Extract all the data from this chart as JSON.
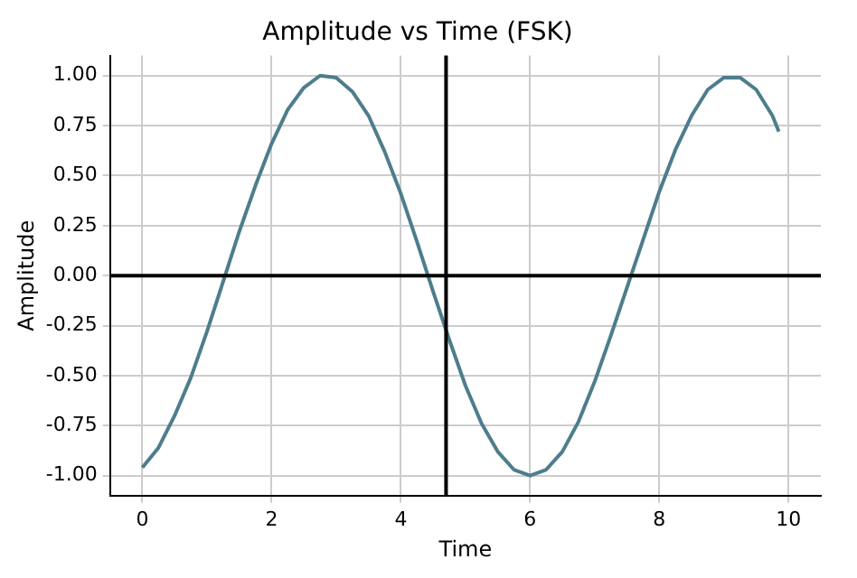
{
  "chart_data": {
    "type": "line",
    "title": "Amplitude vs Time (FSK)",
    "xlabel": "Time",
    "ylabel": "Amplitude",
    "series": [
      {
        "color": "#4e7d8c",
        "x": [
          0,
          0.25,
          0.5,
          0.75,
          1,
          1.25,
          1.5,
          1.75,
          2,
          2.25,
          2.5,
          2.75,
          3,
          3.25,
          3.5,
          3.75,
          4,
          4.25,
          4.5,
          4.75,
          5,
          5.25,
          5.5,
          5.75,
          6,
          6.25,
          6.5,
          6.75,
          7,
          7.25,
          7.5,
          7.75,
          8,
          8.25,
          8.5,
          8.75,
          9,
          9.25,
          9.5,
          9.75,
          9.85
        ],
        "values": [
          -0.96,
          -0.86,
          -0.7,
          -0.51,
          -0.28,
          -0.03,
          0.22,
          0.45,
          0.66,
          0.83,
          0.94,
          1.0,
          0.99,
          0.92,
          0.8,
          0.62,
          0.41,
          0.17,
          -0.08,
          -0.32,
          -0.55,
          -0.74,
          -0.88,
          -0.97,
          -1.0,
          -0.97,
          -0.88,
          -0.73,
          -0.53,
          -0.3,
          -0.06,
          0.18,
          0.42,
          0.63,
          0.8,
          0.93,
          0.99,
          0.99,
          0.93,
          0.8,
          0.72
        ]
      }
    ],
    "xlim": [
      -0.5,
      10.5
    ],
    "xticks": [
      0,
      2,
      4,
      6,
      8,
      10
    ],
    "ylim": [
      -1.1,
      1.1
    ],
    "yticks": [
      {
        "value": -1,
        "label": "-1.00"
      },
      {
        "value": -0.75,
        "label": "-0.75"
      },
      {
        "value": -0.5,
        "label": "-0.50"
      },
      {
        "value": -0.25,
        "label": "-0.25"
      },
      {
        "value": 0,
        "label": "0.00"
      },
      {
        "value": 0.25,
        "label": "0.25"
      },
      {
        "value": 0.5,
        "label": "0.50"
      },
      {
        "value": 0.75,
        "label": "0.75"
      },
      {
        "value": 1,
        "label": "1.00"
      }
    ],
    "grid": true,
    "marker": "none",
    "line_style": "solid",
    "ref_lines": [
      {
        "axis": "x",
        "value": 4.7,
        "color": "#000000"
      },
      {
        "axis": "y",
        "value": 0,
        "color": "#000000"
      }
    ]
  }
}
